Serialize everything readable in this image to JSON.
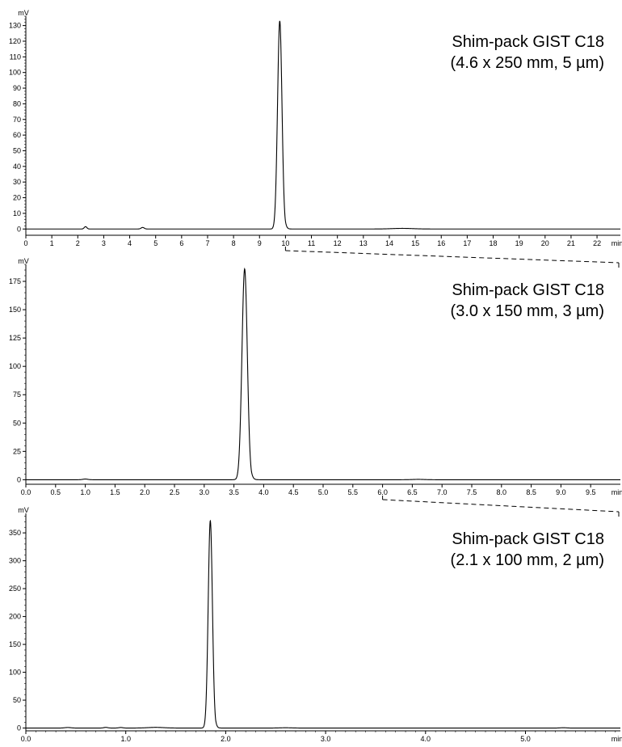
{
  "chart_data": [
    {
      "type": "line",
      "title_lines": [
        "Shim-pack GIST C18",
        "(4.6 x 250 mm, 5 µm)"
      ],
      "y_unit": "mV",
      "x_unit": "min",
      "xlim": [
        0,
        22.9
      ],
      "ylim": [
        -4,
        136
      ],
      "x_ticks": [
        0,
        1,
        2,
        3,
        4,
        5,
        6,
        7,
        8,
        9,
        10,
        11,
        12,
        13,
        14,
        15,
        16,
        17,
        18,
        19,
        20,
        21,
        22
      ],
      "x_tick_labels": [
        "0",
        "1",
        "2",
        "3",
        "4",
        "5",
        "6",
        "7",
        "8",
        "9",
        "10",
        "11",
        "12",
        "13",
        "14",
        "15",
        "16",
        "17",
        "18",
        "19",
        "20",
        "21",
        "22"
      ],
      "y_ticks": [
        0,
        10,
        20,
        30,
        40,
        50,
        60,
        70,
        80,
        90,
        100,
        110,
        120,
        130
      ],
      "y_tick_labels": [
        "0",
        "10",
        "20",
        "30",
        "40",
        "50",
        "60",
        "70",
        "80",
        "90",
        "100",
        "110",
        "120",
        "130"
      ],
      "y_minor_step": 2,
      "baseline": 0,
      "peaks": [
        {
          "rt": 2.3,
          "height": 1.5,
          "sigma": 0.05
        },
        {
          "rt": 4.5,
          "height": 1.0,
          "sigma": 0.06
        },
        {
          "rt": 9.78,
          "height": 133,
          "sigma": 0.085,
          "tail": 0.05
        },
        {
          "rt": 14.5,
          "height": 0.4,
          "sigma": 0.4
        }
      ],
      "grid": false
    },
    {
      "type": "line",
      "title_lines": [
        "Shim-pack GIST C18",
        "(3.0 x 150 mm, 3 µm)"
      ],
      "y_unit": "mV",
      "x_unit": "min",
      "xlim": [
        0,
        10.0
      ],
      "ylim": [
        -4,
        190
      ],
      "x_ticks": [
        0,
        0.5,
        1,
        1.5,
        2,
        2.5,
        3,
        3.5,
        4,
        4.5,
        5,
        5.5,
        6,
        6.5,
        7,
        7.5,
        8,
        8.5,
        9,
        9.5
      ],
      "x_tick_labels": [
        "0.0",
        "0.5",
        "1.0",
        "1.5",
        "2.0",
        "2.5",
        "3.0",
        "3.5",
        "4.0",
        "4.5",
        "5.0",
        "5.5",
        "6.0",
        "6.5",
        "7.0",
        "7.5",
        "8.0",
        "8.5",
        "9.0",
        "9.5"
      ],
      "y_ticks": [
        0,
        25,
        50,
        75,
        100,
        125,
        150,
        175
      ],
      "y_tick_labels": [
        "0",
        "25",
        "50",
        "75",
        "100",
        "125",
        "150",
        "175"
      ],
      "y_minor_step": 5,
      "baseline": 0,
      "peaks": [
        {
          "rt": 1.0,
          "height": 0.6,
          "sigma": 0.04
        },
        {
          "rt": 3.68,
          "height": 186,
          "sigma": 0.045,
          "tail": 0.025
        },
        {
          "rt": 6.6,
          "height": 0.3,
          "sigma": 0.1
        }
      ],
      "grid": false
    },
    {
      "type": "line",
      "title_lines": [
        "Shim-pack GIST C18",
        "(2.1 x 100 mm, 2 µm)"
      ],
      "y_unit": "mV",
      "x_unit": "min",
      "xlim": [
        0,
        5.95
      ],
      "ylim": [
        -5,
        385
      ],
      "x_ticks": [
        0,
        1,
        2,
        3,
        4,
        5
      ],
      "x_tick_labels": [
        "0.0",
        "1.0",
        "2.0",
        "3.0",
        "4.0",
        "5.0"
      ],
      "x_minor_step": 0.1,
      "y_ticks": [
        0,
        50,
        100,
        150,
        200,
        250,
        300,
        350
      ],
      "y_tick_labels": [
        "0",
        "50",
        "100",
        "150",
        "200",
        "250",
        "300",
        "350"
      ],
      "y_minor_step": 10,
      "baseline": 0,
      "peaks": [
        {
          "rt": 0.42,
          "height": 1.0,
          "sigma": 0.03
        },
        {
          "rt": 0.8,
          "height": 1.2,
          "sigma": 0.02
        },
        {
          "rt": 0.95,
          "height": 1.0,
          "sigma": 0.02
        },
        {
          "rt": 1.3,
          "height": 1.2,
          "sigma": 0.08
        },
        {
          "rt": 1.846,
          "height": 372,
          "sigma": 0.021,
          "tail": 0.012
        },
        {
          "rt": 2.6,
          "height": 0.5,
          "sigma": 0.06
        },
        {
          "rt": 5.38,
          "height": 0.6,
          "sigma": 0.03
        }
      ],
      "grid": false
    }
  ],
  "connectors": [
    {
      "from_panel": 0,
      "from_x": 10,
      "to_panel": 1,
      "to_x_frac": 1.0
    },
    {
      "from_panel": 1,
      "from_x": 6.0,
      "to_panel": 2,
      "to_x_frac": 1.0
    }
  ]
}
